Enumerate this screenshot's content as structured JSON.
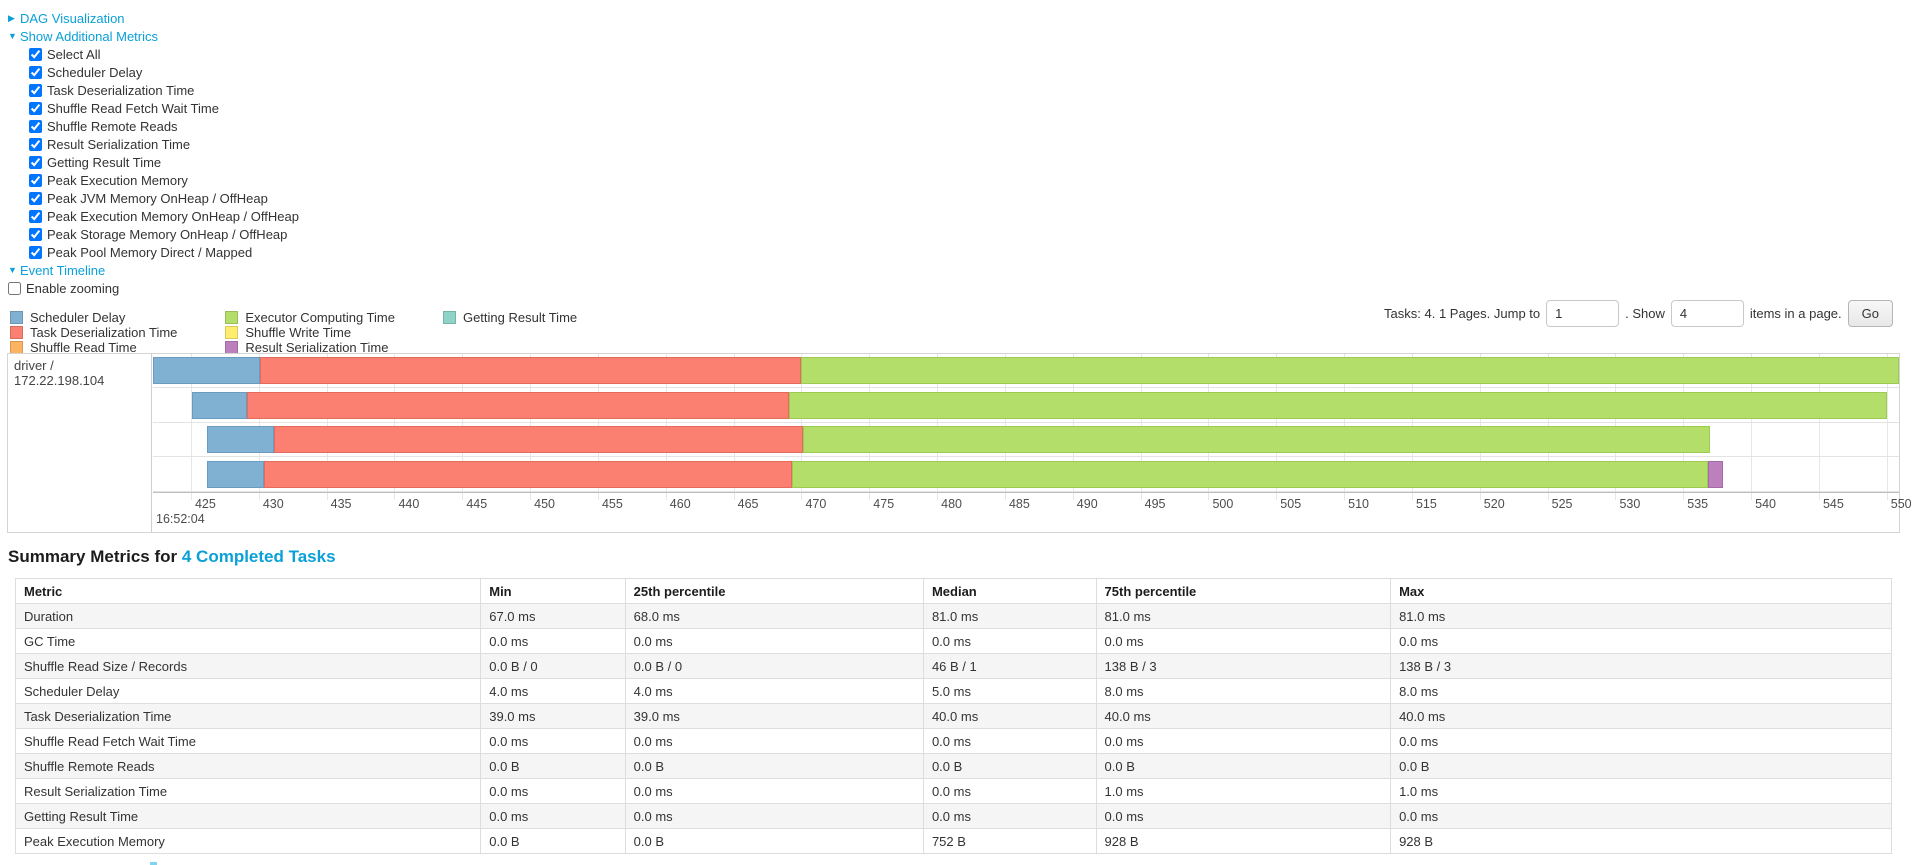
{
  "toggles": {
    "dag": {
      "arrow": "▶",
      "label": "DAG Visualization"
    },
    "metrics": {
      "arrow": "▼",
      "label": "Show Additional Metrics"
    },
    "timeline": {
      "arrow": "▼",
      "label": "Event Timeline"
    }
  },
  "metrics_panel": {
    "items": [
      {
        "label": "Select All",
        "checked": true
      },
      {
        "label": "Scheduler Delay",
        "checked": true
      },
      {
        "label": "Task Deserialization Time",
        "checked": true
      },
      {
        "label": "Shuffle Read Fetch Wait Time",
        "checked": true
      },
      {
        "label": "Shuffle Remote Reads",
        "checked": true
      },
      {
        "label": "Result Serialization Time",
        "checked": true
      },
      {
        "label": "Getting Result Time",
        "checked": true
      },
      {
        "label": "Peak Execution Memory",
        "checked": true
      },
      {
        "label": "Peak JVM Memory OnHeap / OffHeap",
        "checked": true
      },
      {
        "label": "Peak Execution Memory OnHeap / OffHeap",
        "checked": true
      },
      {
        "label": "Peak Storage Memory OnHeap / OffHeap",
        "checked": true
      },
      {
        "label": "Peak Pool Memory Direct / Mapped",
        "checked": true
      }
    ]
  },
  "enable_zooming": {
    "label": "Enable zooming",
    "checked": false
  },
  "pagination": {
    "tasks_info": "Tasks: 4. 1 Pages. Jump to",
    "jump_value": "1",
    "show_label": ". Show",
    "show_value": "4",
    "suffix": "items in a page.",
    "go_label": "Go"
  },
  "colors": {
    "scheduler-delay": {
      "fill": "#80B1D3",
      "border": "#6A9CC2"
    },
    "task-deserialization": {
      "fill": "#FB8072",
      "border": "#E36B5E"
    },
    "shuffle-read": {
      "fill": "#FDB462",
      "border": "#E89F4C"
    },
    "executor-computing": {
      "fill": "#B3DE69",
      "border": "#9CCB50"
    },
    "shuffle-write": {
      "fill": "#FFED6F",
      "border": "#E8D758"
    },
    "result-serialization": {
      "fill": "#BC80BD",
      "border": "#A569A7"
    },
    "getting-result": {
      "fill": "#8DD3C7",
      "border": "#76BFB1"
    }
  },
  "timeline": {
    "legend": [
      {
        "type": "scheduler-delay",
        "label": "Scheduler Delay"
      },
      {
        "type": "task-deserialization",
        "label": "Task Deserialization Time"
      },
      {
        "type": "shuffle-read",
        "label": "Shuffle Read Time"
      },
      {
        "type": "executor-computing",
        "label": "Executor Computing Time"
      },
      {
        "type": "shuffle-write",
        "label": "Shuffle Write Time"
      },
      {
        "type": "result-serialization",
        "label": "Result Serialization Time"
      },
      {
        "type": "getting-result",
        "label": "Getting Result Time"
      }
    ],
    "group_label": "driver / 172.22.198.104",
    "axis": {
      "domain": [
        422.2,
        550.9
      ],
      "ticks": [
        425,
        430,
        435,
        440,
        445,
        450,
        455,
        460,
        465,
        470,
        475,
        480,
        485,
        490,
        495,
        500,
        505,
        510,
        515,
        520,
        525,
        530,
        535,
        540,
        545,
        550
      ],
      "base_label": "16:52:04"
    },
    "tasks": [
      {
        "segments": [
          {
            "type": "scheduler-delay",
            "start": 422.2,
            "end": 430.1
          },
          {
            "type": "task-deserialization",
            "start": 430.1,
            "end": 470.0
          },
          {
            "type": "executor-computing",
            "start": 470.0,
            "end": 550.9
          }
        ]
      },
      {
        "segments": [
          {
            "type": "scheduler-delay",
            "start": 425.1,
            "end": 429.1
          },
          {
            "type": "task-deserialization",
            "start": 429.1,
            "end": 469.1
          },
          {
            "type": "executor-computing",
            "start": 469.1,
            "end": 550.0
          }
        ]
      },
      {
        "segments": [
          {
            "type": "scheduler-delay",
            "start": 426.2,
            "end": 431.1
          },
          {
            "type": "task-deserialization",
            "start": 431.1,
            "end": 470.1
          },
          {
            "type": "executor-computing",
            "start": 470.1,
            "end": 537.0
          }
        ]
      },
      {
        "segments": [
          {
            "type": "scheduler-delay",
            "start": 426.2,
            "end": 430.4
          },
          {
            "type": "task-deserialization",
            "start": 430.4,
            "end": 469.3
          },
          {
            "type": "executor-computing",
            "start": 469.3,
            "end": 536.8
          },
          {
            "type": "result-serialization",
            "start": 536.8,
            "end": 537.9
          }
        ]
      }
    ]
  },
  "summary": {
    "title_prefix": "Summary Metrics for",
    "title_link": "4 Completed Tasks",
    "columns": [
      "Metric",
      "Min",
      "25th percentile",
      "Median",
      "75th percentile",
      "Max"
    ],
    "rows": [
      [
        "Duration",
        "67.0 ms",
        "68.0 ms",
        "81.0 ms",
        "81.0 ms",
        "81.0 ms"
      ],
      [
        "GC Time",
        "0.0 ms",
        "0.0 ms",
        "0.0 ms",
        "0.0 ms",
        "0.0 ms"
      ],
      [
        "Shuffle Read Size / Records",
        "0.0 B / 0",
        "0.0 B / 0",
        "46 B / 1",
        "138 B / 3",
        "138 B / 3"
      ],
      [
        "Scheduler Delay",
        "4.0 ms",
        "4.0 ms",
        "5.0 ms",
        "8.0 ms",
        "8.0 ms"
      ],
      [
        "Task Deserialization Time",
        "39.0 ms",
        "39.0 ms",
        "40.0 ms",
        "40.0 ms",
        "40.0 ms"
      ],
      [
        "Shuffle Read Fetch Wait Time",
        "0.0 ms",
        "0.0 ms",
        "0.0 ms",
        "0.0 ms",
        "0.0 ms"
      ],
      [
        "Shuffle Remote Reads",
        "0.0 B",
        "0.0 B",
        "0.0 B",
        "0.0 B",
        "0.0 B"
      ],
      [
        "Result Serialization Time",
        "0.0 ms",
        "0.0 ms",
        "0.0 ms",
        "1.0 ms",
        "1.0 ms"
      ],
      [
        "Getting Result Time",
        "0.0 ms",
        "0.0 ms",
        "0.0 ms",
        "0.0 ms",
        "0.0 ms"
      ],
      [
        "Peak Execution Memory",
        "0.0 B",
        "0.0 B",
        "752 B",
        "928 B",
        "928 B"
      ]
    ]
  }
}
